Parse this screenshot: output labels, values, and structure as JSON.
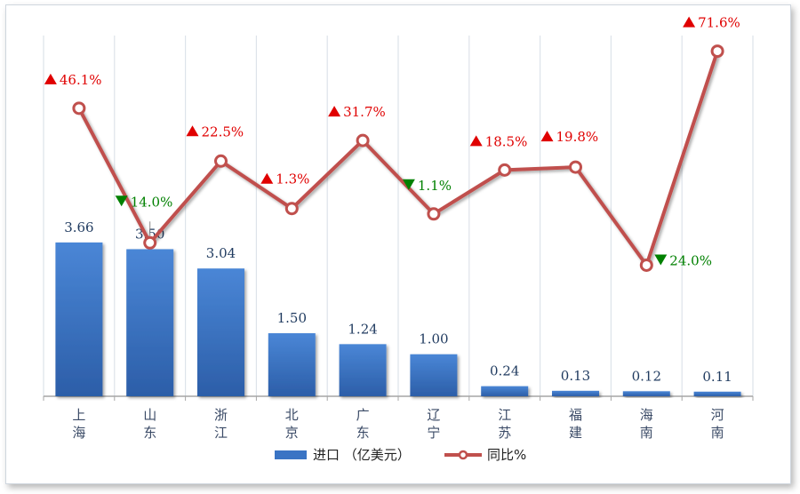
{
  "chart_data": {
    "type": "bar",
    "categories": [
      "上\n海",
      "山\n东",
      "浙\n江",
      "北\n京",
      "广\n东",
      "辽\n宁",
      "江\n苏",
      "福\n建",
      "海\n南",
      "河\n南"
    ],
    "series": [
      {
        "name": "进口 （亿美元）",
        "type": "bar",
        "values": [
          3.66,
          3.5,
          3.04,
          1.5,
          1.24,
          1.0,
          0.24,
          0.13,
          0.12,
          0.11
        ],
        "labels": [
          "3.66",
          "3.50",
          "3.04",
          "1.50",
          "1.24",
          "1.00",
          "0.24",
          "0.13",
          "0.12",
          "0.11"
        ],
        "color": "#3a74c4"
      },
      {
        "name": "同比%",
        "type": "line",
        "values": [
          46.1,
          -14.0,
          22.5,
          1.3,
          31.7,
          -1.1,
          18.5,
          19.8,
          -24.0,
          71.6
        ],
        "labels": [
          "46.1%",
          "14.0%",
          "22.5%",
          "1.3%",
          "31.7%",
          "1.1%",
          "18.5%",
          "19.8%",
          "24.0%",
          "71.6%"
        ],
        "directions": [
          "up",
          "down",
          "up",
          "up",
          "up",
          "down",
          "up",
          "up",
          "down",
          "up"
        ],
        "color": "#c0504d"
      }
    ],
    "colors": {
      "up": "#e00000",
      "down": "#008000",
      "bar_label": "#1f3a5f",
      "axis": "#a6a6a6"
    },
    "grid": "vertical"
  }
}
